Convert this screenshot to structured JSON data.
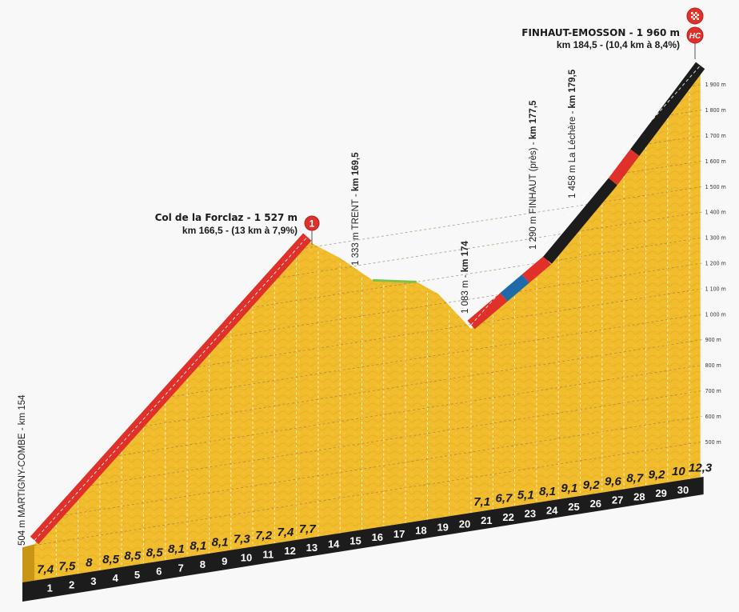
{
  "chart_data": {
    "type": "area",
    "xlabel": "",
    "ylabel": "",
    "x_unit": "km",
    "ylim": [
      500,
      1960
    ],
    "grid": true,
    "profile": [
      [
        0,
        504
      ],
      [
        12.5,
        1527
      ],
      [
        14,
        1440
      ],
      [
        15.5,
        1333
      ],
      [
        16.5,
        1318
      ],
      [
        17.5,
        1300
      ],
      [
        18.5,
        1240
      ],
      [
        20,
        1083
      ],
      [
        23.5,
        1290
      ],
      [
        25.5,
        1458
      ],
      [
        30.5,
        1960
      ]
    ],
    "y_ticks": [
      {
        "value": 500,
        "label": "500 m"
      },
      {
        "value": 600,
        "label": "600 m"
      },
      {
        "value": 700,
        "label": "700 m"
      },
      {
        "value": 800,
        "label": "800 m"
      },
      {
        "value": 900,
        "label": "900 m"
      },
      {
        "value": 1000,
        "label": "1 000 m"
      },
      {
        "value": 1100,
        "label": "1 100 m"
      },
      {
        "value": 1200,
        "label": "1 200 m"
      },
      {
        "value": 1300,
        "label": "1 300 m"
      },
      {
        "value": 1400,
        "label": "1 400 m"
      },
      {
        "value": 1500,
        "label": "1 500 m"
      },
      {
        "value": 1600,
        "label": "1 600 m"
      },
      {
        "value": 1700,
        "label": "1 700 m"
      },
      {
        "value": 1800,
        "label": "1 800 m"
      },
      {
        "value": 1900,
        "label": "1 900 m"
      }
    ],
    "km_labels": [
      "1",
      "2",
      "3",
      "4",
      "5",
      "6",
      "7",
      "8",
      "9",
      "10",
      "11",
      "12",
      "13",
      "14",
      "15",
      "16",
      "17",
      "18",
      "19",
      "20",
      "21",
      "22",
      "23",
      "24",
      "25",
      "26",
      "27",
      "28",
      "29",
      "30"
    ],
    "gradients_climb1": {
      "start_km": 0,
      "values": [
        "7,4",
        "7,5",
        "8",
        "8,5",
        "8,5",
        "8,5",
        "8,1",
        "8,1",
        "8,1",
        "7,3",
        "7,2",
        "7,4",
        "7,7"
      ]
    },
    "gradients_climb2": {
      "start_km": 20,
      "values": [
        "7,1",
        "6,7",
        "5,1",
        "8,1",
        "9,1",
        "9,2",
        "9,6",
        "8,7",
        "9,2",
        "10",
        "12,3"
      ]
    },
    "climb_segments": [
      {
        "from": 0,
        "to": 12.5,
        "color": "#e0302a"
      },
      {
        "from": 20,
        "to": 21.5,
        "color": "#e0302a"
      },
      {
        "from": 21.5,
        "to": 22.5,
        "color": "#1f6aa8"
      },
      {
        "from": 22.5,
        "to": 23.5,
        "color": "#e0302a"
      },
      {
        "from": 23.5,
        "to": 26.5,
        "color": "#1c1c1c"
      },
      {
        "from": 26.5,
        "to": 27.5,
        "color": "#e0302a"
      },
      {
        "from": 27.5,
        "to": 30.5,
        "color": "#1c1c1c"
      }
    ],
    "flat_segment": {
      "from": 15.5,
      "to": 17.5,
      "color": "#7cc24a"
    },
    "colors": {
      "terrain": "#f2bd2c",
      "base": "#1c1c1c",
      "background": "#f8f8f8"
    },
    "annotations": {
      "start": "504 m MARTIGNY-COMBE - km 154",
      "trent_a": "1 333 m TRENT - ",
      "trent_b": "km 169,5",
      "low_a": "1 083 m - ",
      "low_b": "km 174",
      "finhaut_a": "1 290 m FINHAUT (près) - ",
      "finhaut_b": "km 177,5",
      "lechere_a": "1 458 m La Léchère - ",
      "lechere_b": "km 179,5"
    },
    "summits": {
      "forclaz": {
        "name": "Col de la Forclaz - 1 527 m",
        "detail": "km 166,5 - (13 km à 7,9%)",
        "category": "1"
      },
      "finish": {
        "name": "FINHAUT-EMOSSON - 1 960 m",
        "detail": "km 184,5 - (10,4 km à 8,4%)",
        "category": "HC",
        "icon": "finish-flag-icon"
      }
    }
  }
}
